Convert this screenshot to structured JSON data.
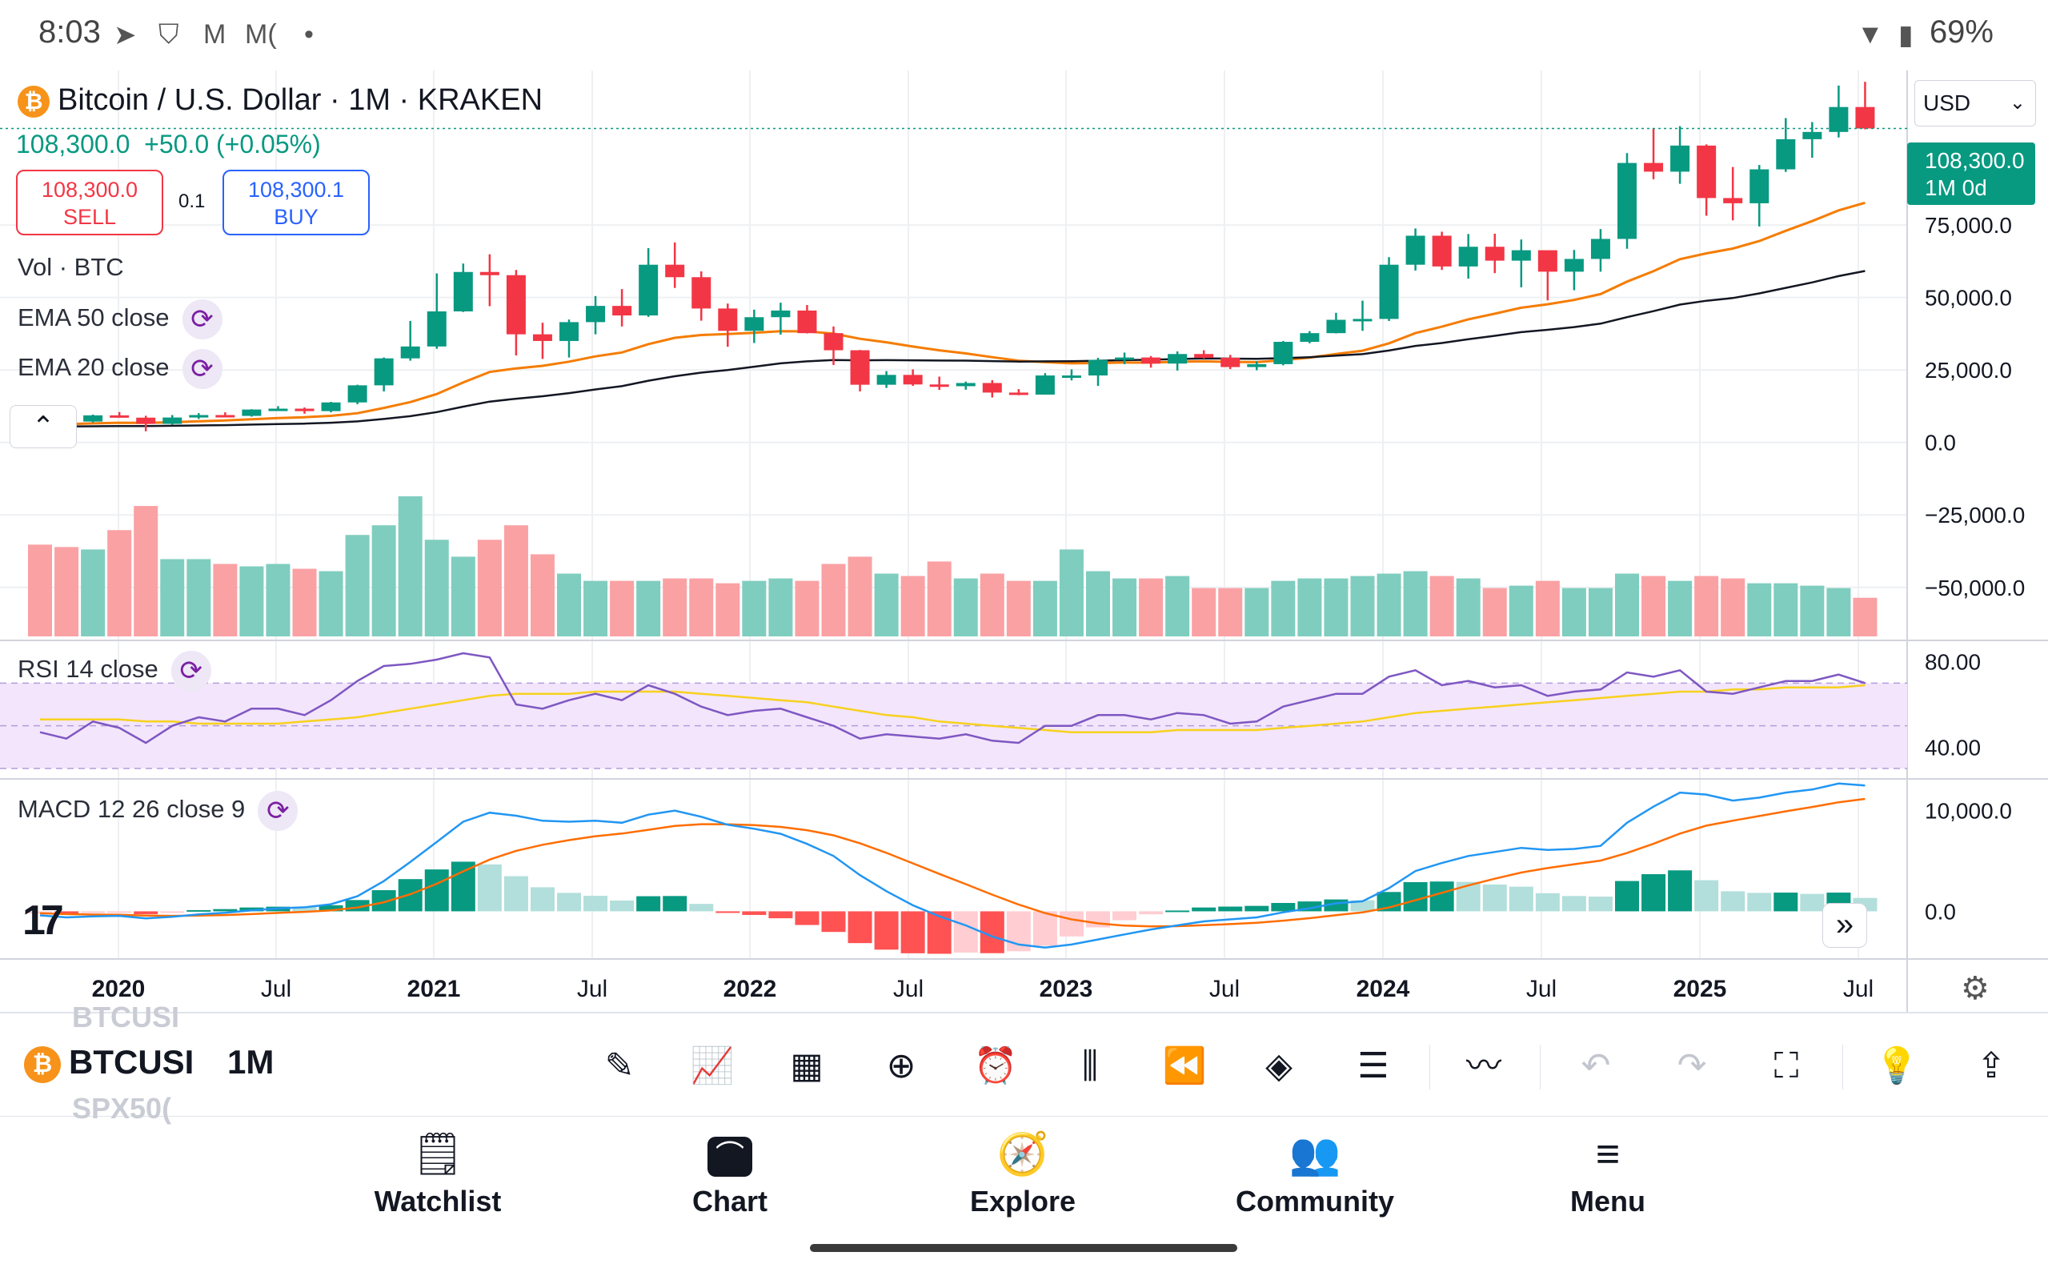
{
  "status_bar": {
    "time": "8:03",
    "notif_icons": [
      "telegram-icon",
      "brave-icon",
      "gmail-icon",
      "M(",
      "•"
    ],
    "battery": "69%"
  },
  "chart_header": {
    "symbol_title": "Bitcoin / U.S. Dollar · 1M · KRAKEN",
    "price_change": "108,300.0  +50.0 (+0.05%)",
    "sell_price": "108,300.0",
    "sell_label": "SELL",
    "qty": "0.1",
    "buy_price": "108,300.1",
    "buy_label": "BUY",
    "currency": "USD",
    "last_price": "108,300.0",
    "last_period": "1M 0d"
  },
  "indicators": {
    "vol": "Vol · BTC",
    "ema50": "EMA 50 close",
    "ema20": "EMA 20 close",
    "rsi": "RSI 14 close",
    "macd": "MACD 12 26 close 9"
  },
  "price_axis": [
    "75,000.0",
    "50,000.0",
    "25,000.0",
    "0.0",
    "−25,000.0",
    "−50,000.0"
  ],
  "rsi_axis": [
    "80.00",
    "40.00"
  ],
  "macd_axis": [
    "10,000.0",
    "0.0"
  ],
  "time_axis": [
    "2020",
    "Jul",
    "2021",
    "Jul",
    "2022",
    "Jul",
    "2023",
    "Jul",
    "2024",
    "Jul",
    "2025",
    "Jul"
  ],
  "toolbar": {
    "ticker": "BTCUSI",
    "ticker_above": "BTCUSI",
    "ticker_below": "SPX50(",
    "interval": "1M",
    "tools": [
      "brush-icon",
      "indicators-icon",
      "templates-icon",
      "add-icon",
      "alert-icon",
      "bar-style-icon",
      "replay-icon",
      "layers-icon",
      "settings-sliders-icon",
      "compare-icon",
      "undo-icon",
      "redo-icon",
      "fullscreen-icon",
      "add-idea-icon",
      "share-icon"
    ]
  },
  "bottom_nav": {
    "watchlist": "Watchlist",
    "chart": "Chart",
    "explore": "Explore",
    "community": "Community",
    "menu": "Menu"
  },
  "colors": {
    "up": "#089981",
    "down": "#f23645",
    "ema50": "#131722",
    "ema20": "#f57c00",
    "rsi": "#7e57c2",
    "rsi_ma": "#f7d11e",
    "macd": "#2196f3",
    "signal": "#ff6d00"
  },
  "chart_data": {
    "type": "candlestick",
    "x": [
      "2019-11",
      "2019-12",
      "2020-01",
      "2020-02",
      "2020-03",
      "2020-04",
      "2020-05",
      "2020-06",
      "2020-07",
      "2020-08",
      "2020-09",
      "2020-10",
      "2020-11",
      "2020-12",
      "2021-01",
      "2021-02",
      "2021-03",
      "2021-04",
      "2021-05",
      "2021-06",
      "2021-07",
      "2021-08",
      "2021-09",
      "2021-10",
      "2021-11",
      "2021-12",
      "2022-01",
      "2022-02",
      "2022-03",
      "2022-04",
      "2022-05",
      "2022-06",
      "2022-07",
      "2022-08",
      "2022-09",
      "2022-10",
      "2022-11",
      "2022-12",
      "2023-01",
      "2023-02",
      "2023-03",
      "2023-04",
      "2023-05",
      "2023-06",
      "2023-07",
      "2023-08",
      "2023-09",
      "2023-10",
      "2023-11",
      "2023-12",
      "2024-01",
      "2024-02",
      "2024-03",
      "2024-04",
      "2024-05",
      "2024-06",
      "2024-07",
      "2024-08",
      "2024-09",
      "2024-10",
      "2024-11",
      "2024-12",
      "2025-01",
      "2025-02",
      "2025-03",
      "2025-04",
      "2025-05",
      "2025-06",
      "2025-07",
      "2025-08"
    ],
    "open": [
      9150,
      7550,
      7200,
      9350,
      8550,
      6400,
      8600,
      9450,
      9150,
      11350,
      11650,
      10800,
      13800,
      19700,
      29000,
      33100,
      45200,
      58800,
      57700,
      37300,
      35000,
      41500,
      47100,
      43800,
      61300,
      57000,
      46200,
      38500,
      43200,
      45500,
      37700,
      31800,
      19900,
      23300,
      20000,
      19400,
      20500,
      17200,
      16500,
      23100,
      23100,
      28500,
      29300,
      27200,
      30500,
      29200,
      26000,
      27000,
      34700,
      37700,
      42300,
      42600,
      61300,
      71300,
      60700,
      67500,
      62700,
      66300,
      58900,
      63300,
      70200,
      96400,
      93400,
      102400,
      84300,
      82500,
      94200,
      104600,
      107100,
      115700
    ],
    "high": [
      9500,
      7750,
      9600,
      10500,
      9200,
      9450,
      10100,
      10400,
      11450,
      12500,
      12050,
      14000,
      19900,
      29300,
      41900,
      58300,
      61700,
      64900,
      59500,
      41300,
      42400,
      50500,
      52900,
      67000,
      69000,
      59000,
      47900,
      45800,
      48200,
      47400,
      40000,
      31900,
      24600,
      25200,
      22700,
      21000,
      21500,
      18400,
      23900,
      25200,
      29200,
      31000,
      29800,
      31400,
      31800,
      30200,
      28000,
      35000,
      38400,
      44700,
      48900,
      63900,
      73800,
      72700,
      71900,
      72000,
      70000,
      65100,
      66400,
      73600,
      99800,
      108300,
      109100,
      102800,
      95000,
      95700,
      111900,
      110500,
      123100,
      124400
    ],
    "low": [
      6500,
      6400,
      6900,
      8500,
      3850,
      6150,
      8100,
      8900,
      8900,
      11000,
      9900,
      10400,
      13200,
      17600,
      28200,
      32300,
      45000,
      47000,
      30000,
      28800,
      29300,
      37300,
      40000,
      43300,
      53300,
      42000,
      33000,
      34300,
      37200,
      37600,
      26700,
      17600,
      18800,
      19500,
      18100,
      18200,
      15500,
      16300,
      16500,
      21400,
      19500,
      27000,
      25800,
      24800,
      28900,
      25300,
      24900,
      26600,
      34200,
      37600,
      38500,
      41900,
      59300,
      59500,
      56500,
      58400,
      53500,
      49000,
      52500,
      58900,
      66800,
      90800,
      89200,
      78200,
      76600,
      74500,
      93300,
      98200,
      105200,
      108000
    ],
    "close": [
      7550,
      7200,
      9350,
      8550,
      6400,
      8600,
      9450,
      9150,
      11350,
      11650,
      10800,
      13800,
      19700,
      29000,
      33100,
      45200,
      58800,
      57700,
      37300,
      35000,
      41500,
      47100,
      43800,
      61300,
      57000,
      46200,
      38500,
      43200,
      45500,
      37700,
      31800,
      19900,
      23300,
      20000,
      19400,
      20500,
      17200,
      16500,
      23100,
      23100,
      28500,
      29300,
      27200,
      30500,
      29200,
      26000,
      27000,
      34700,
      37700,
      42300,
      42600,
      61300,
      71300,
      60700,
      67500,
      62700,
      66300,
      58900,
      63300,
      70200,
      96400,
      93400,
      102400,
      84300,
      82500,
      94200,
      104600,
      107100,
      115700,
      108300
    ],
    "volume": [
      1900,
      1850,
      1800,
      2200,
      2700,
      1600,
      1600,
      1500,
      1450,
      1500,
      1400,
      1350,
      2100,
      2300,
      2900,
      2000,
      1650,
      2000,
      2300,
      1700,
      1300,
      1150,
      1150,
      1150,
      1200,
      1200,
      1100,
      1150,
      1200,
      1150,
      1500,
      1650,
      1300,
      1250,
      1550,
      1200,
      1300,
      1150,
      1150,
      1800,
      1350,
      1200,
      1200,
      1250,
      1000,
      1000,
      1000,
      1150,
      1200,
      1200,
      1250,
      1300,
      1350,
      1250,
      1200,
      1000,
      1050,
      1150,
      1000,
      1000,
      1300,
      1250,
      1150,
      1250,
      1200,
      1100,
      1100,
      1050,
      1000,
      800
    ],
    "ema50": [
      5500,
      5520,
      5580,
      5630,
      5650,
      5740,
      5860,
      5970,
      6150,
      6340,
      6500,
      6780,
      7250,
      8100,
      9070,
      10460,
      12340,
      14090,
      15080,
      15930,
      17010,
      18280,
      19400,
      21300,
      22830,
      24090,
      24970,
      26110,
      27280,
      27970,
      28410,
      28340,
      28380,
      28330,
      28250,
      28210,
      28060,
      27890,
      27970,
      28030,
      28200,
      28390,
      28530,
      28760,
      28980,
      28900,
      28850,
      29080,
      29400,
      29920,
      30450,
      31690,
      33290,
      34290,
      35590,
      36790,
      38060,
      38850,
      39790,
      40980,
      43210,
      45280,
      47560,
      48870,
      49820,
      51410,
      53330,
      55210,
      57370,
      59150
    ],
    "ema20": [
      6200,
      6300,
      6580,
      6780,
      6740,
      6970,
      7300,
      7560,
      8000,
      8410,
      8690,
      9170,
      10090,
      11890,
      13910,
      16700,
      20700,
      24300,
      25530,
      26430,
      27860,
      29690,
      31030,
      33920,
      36100,
      37050,
      37400,
      37790,
      38340,
      38300,
      37530,
      35750,
      34550,
      33070,
      31770,
      30700,
      29410,
      28180,
      27700,
      27270,
      27390,
      27570,
      27540,
      27830,
      27960,
      27770,
      27690,
      28380,
      29270,
      30500,
      31650,
      34190,
      37720,
      39930,
      42480,
      44410,
      46480,
      47670,
      49160,
      51160,
      55460,
      59070,
      63210,
      65220,
      66870,
      69470,
      73000,
      76340,
      80060,
      82660
    ],
    "rsi": [
      47,
      44,
      52,
      49,
      42,
      50,
      54,
      52,
      58,
      58,
      55,
      62,
      71,
      78,
      79,
      81,
      84,
      82,
      60,
      58,
      62,
      65,
      62,
      69,
      65,
      59,
      55,
      57,
      58,
      54,
      50,
      44,
      46,
      45,
      44,
      46,
      43,
      42,
      50,
      50,
      55,
      55,
      53,
      56,
      55,
      51,
      52,
      59,
      62,
      65,
      65,
      73,
      76,
      69,
      71,
      68,
      69,
      64,
      66,
      67,
      75,
      73,
      76,
      66,
      65,
      68,
      71,
      71,
      74,
      70
    ],
    "rsi_ma": [
      53,
      53,
      53,
      53,
      52,
      52,
      51,
      51,
      51,
      51,
      52,
      53,
      54,
      56,
      58,
      60,
      62,
      64,
      65,
      65,
      65,
      66,
      66,
      66,
      66,
      65,
      64,
      63,
      62,
      61,
      59,
      57,
      55,
      54,
      52,
      51,
      50,
      49,
      48,
      47,
      47,
      47,
      47,
      48,
      48,
      48,
      48,
      49,
      50,
      51,
      52,
      54,
      56,
      57,
      58,
      59,
      60,
      61,
      62,
      63,
      64,
      65,
      66,
      66,
      67,
      67,
      68,
      68,
      68,
      69
    ],
    "macd": [
      -400,
      -600,
      -500,
      -450,
      -700,
      -550,
      -300,
      -150,
      100,
      300,
      400,
      700,
      1500,
      3000,
      4900,
      6900,
      8900,
      9800,
      9500,
      9000,
      8900,
      9000,
      8800,
      9600,
      10000,
      9400,
      8600,
      8200,
      7700,
      6700,
      5500,
      3600,
      2000,
      600,
      -500,
      -1400,
      -2500,
      -3300,
      -3600,
      -3300,
      -2800,
      -2300,
      -1800,
      -1400,
      -1000,
      -800,
      -600,
      -100,
      300,
      800,
      1000,
      2300,
      4000,
      4800,
      5500,
      5900,
      6300,
      6100,
      6200,
      6500,
      8800,
      10400,
      11800,
      11600,
      11000,
      11300,
      11800,
      12100,
      12700,
      12500
    ],
    "signal": [
      -200,
      -280,
      -320,
      -350,
      -420,
      -450,
      -420,
      -370,
      -280,
      -160,
      -50,
      100,
      380,
      900,
      1700,
      2740,
      3970,
      5140,
      6010,
      6610,
      7070,
      7460,
      7730,
      8100,
      8480,
      8660,
      8650,
      8560,
      8390,
      8060,
      7550,
      6760,
      5810,
      4770,
      3720,
      2700,
      1660,
      670,
      -180,
      -800,
      -1200,
      -1420,
      -1500,
      -1480,
      -1380,
      -1270,
      -1140,
      -930,
      -680,
      -380,
      -100,
      380,
      1100,
      1840,
      2570,
      3240,
      3850,
      4300,
      4680,
      5040,
      5790,
      6710,
      7730,
      8510,
      9010,
      9470,
      9940,
      10370,
      10840,
      11170
    ],
    "price_ylim": [
      -60000,
      125000
    ],
    "rsi_ylim": [
      30,
      90
    ],
    "macd_ylim": [
      -4500,
      13000
    ]
  }
}
